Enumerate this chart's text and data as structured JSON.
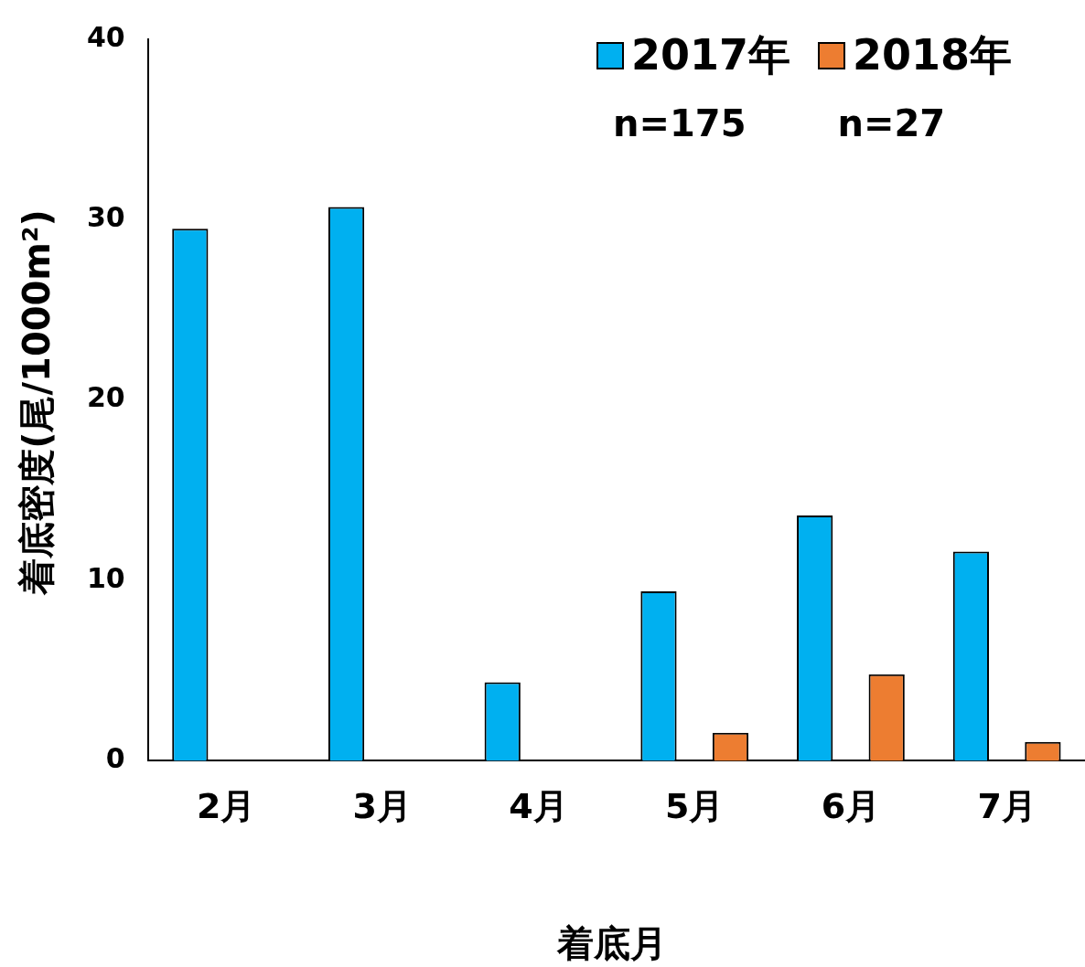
{
  "chart_data": {
    "type": "bar",
    "ylabel": "着底密度(尾/1000m²)",
    "xlabel": "着底月",
    "categories": [
      "2月",
      "3月",
      "4月",
      "5月",
      "6月",
      "7月"
    ],
    "series": [
      {
        "name": "2017年",
        "color": "#00b0f0",
        "values": [
          29.5,
          30.7,
          4.35,
          9.4,
          13.6,
          11.6
        ]
      },
      {
        "name": "2018年",
        "color": "#ed7d31",
        "values": [
          null,
          null,
          null,
          1.55,
          4.8,
          1.05
        ]
      }
    ],
    "ylim": [
      0,
      40
    ],
    "yticks": [
      0,
      10,
      20,
      30,
      40
    ],
    "grid": false,
    "legend": "top right",
    "annotations": [
      "n=175",
      "n=27"
    ]
  }
}
